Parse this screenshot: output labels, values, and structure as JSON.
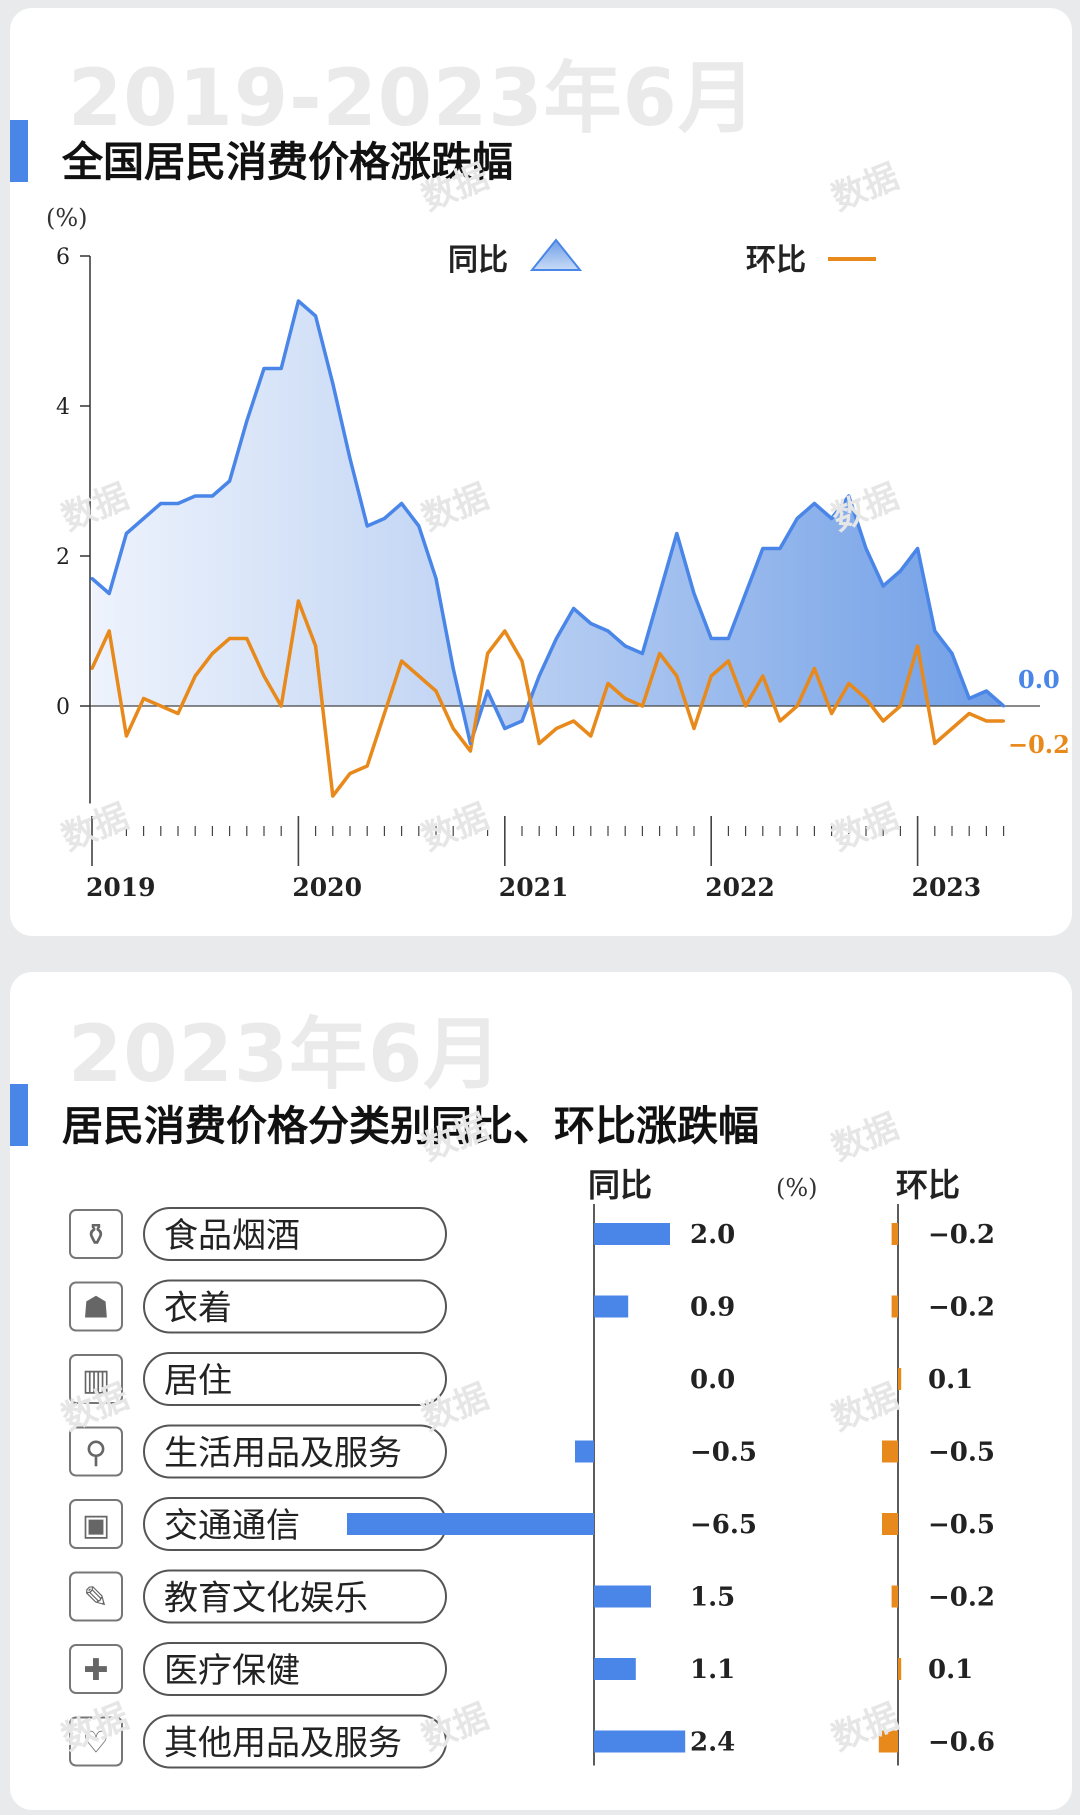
{
  "card1": {
    "year_range": "2019-2023年6月",
    "title": "全国居民消费价格涨跌幅"
  },
  "card2": {
    "year": "2023年6月",
    "title": "居民消费价格分类别同比、环比涨跌幅"
  },
  "watermark": "数据",
  "colors": {
    "yoy": "#4a86e8",
    "mom": "#e8891c",
    "accent": "#4a86e8"
  },
  "chart_data": [
    {
      "type": "area",
      "unit_label": "(%)",
      "ylim": [
        -1.5,
        6
      ],
      "yticks": [
        0,
        2,
        4,
        6
      ],
      "year_labels": [
        "2019",
        "2020",
        "2021",
        "2022",
        "2023"
      ],
      "start": "2019-01",
      "end": "2023-06",
      "grid": false,
      "legend": "top-center",
      "series": [
        {
          "name": "同比",
          "type": "area",
          "end_label": "0.0",
          "values": [
            1.7,
            1.5,
            2.3,
            2.5,
            2.7,
            2.7,
            2.8,
            2.8,
            3.0,
            3.8,
            4.5,
            4.5,
            5.4,
            5.2,
            4.3,
            3.3,
            2.4,
            2.5,
            2.7,
            2.4,
            1.7,
            0.5,
            -0.5,
            0.2,
            -0.3,
            -0.2,
            0.4,
            0.9,
            1.3,
            1.1,
            1.0,
            0.8,
            0.7,
            1.5,
            2.3,
            1.5,
            0.9,
            0.9,
            1.5,
            2.1,
            2.1,
            2.5,
            2.7,
            2.5,
            2.8,
            2.1,
            1.6,
            1.8,
            2.1,
            1.0,
            0.7,
            0.1,
            0.2,
            0.0
          ]
        },
        {
          "name": "环比",
          "type": "line",
          "end_label": "-0.2",
          "values": [
            0.5,
            1.0,
            -0.4,
            0.1,
            0.0,
            -0.1,
            0.4,
            0.7,
            0.9,
            0.9,
            0.4,
            0.0,
            1.4,
            0.8,
            -1.2,
            -0.9,
            -0.8,
            -0.1,
            0.6,
            0.4,
            0.2,
            -0.3,
            -0.6,
            0.7,
            1.0,
            0.6,
            -0.5,
            -0.3,
            -0.2,
            -0.4,
            0.3,
            0.1,
            0.0,
            0.7,
            0.4,
            -0.3,
            0.4,
            0.6,
            0.0,
            0.4,
            -0.2,
            0.0,
            0.5,
            -0.1,
            0.3,
            0.1,
            -0.2,
            0.0,
            0.8,
            -0.5,
            -0.3,
            -0.1,
            -0.2,
            -0.2
          ]
        }
      ]
    },
    {
      "type": "bar",
      "unit_label": "(%)",
      "categories": [
        "食品烟酒",
        "衣着",
        "居住",
        "生活用品及服务",
        "交通通信",
        "教育文化娱乐",
        "医疗保健",
        "其他用品及服务"
      ],
      "icons": [
        "food-drink-icon",
        "clothing-icon",
        "housing-icon",
        "daily-goods-icon",
        "telecom-icon",
        "education-icon",
        "medical-icon",
        "other-goods-icon"
      ],
      "series": [
        {
          "name": "同比",
          "values": [
            2.0,
            0.9,
            0.0,
            -0.5,
            -6.5,
            1.5,
            1.1,
            2.4
          ],
          "labels": [
            "2.0",
            "0.9",
            "0.0",
            "-0.5",
            "-6.5",
            "1.5",
            "1.1",
            "2.4"
          ]
        },
        {
          "name": "环比",
          "values": [
            -0.2,
            -0.2,
            0.1,
            -0.5,
            -0.5,
            -0.2,
            0.1,
            -0.6
          ],
          "labels": [
            "-0.2",
            "-0.2",
            "0.1",
            "-0.5",
            "-0.5",
            "-0.2",
            "0.1",
            "-0.6"
          ]
        }
      ]
    }
  ]
}
